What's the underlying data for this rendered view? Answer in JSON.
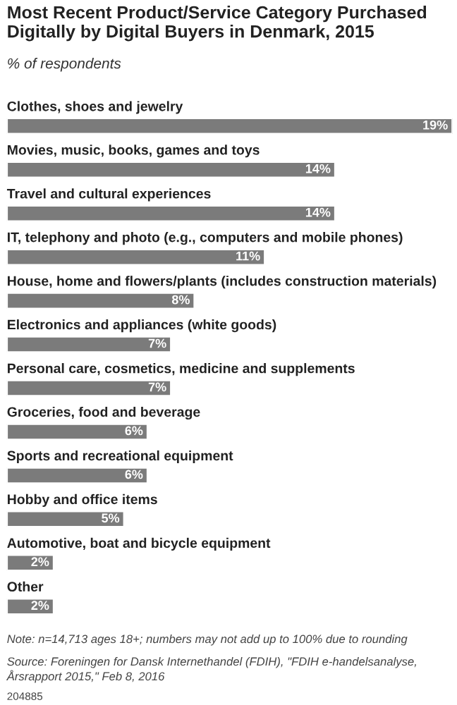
{
  "chart_data": {
    "type": "bar",
    "orientation": "horizontal",
    "title": "Most Recent Product/Service Category Purchased Digitally by Digital Buyers in Denmark, 2015",
    "subtitle": "% of respondents",
    "categories": [
      "Clothes, shoes and jewelry",
      "Movies, music, books, games and toys",
      "Travel and cultural experiences",
      "IT, telephony and photo (e.g., computers and mobile phones)",
      "House, home and flowers/plants (includes construction materials)",
      "Electronics and appliances (white goods)",
      "Personal care, cosmetics, medicine and supplements",
      "Groceries, food and beverage",
      "Sports and recreational equipment",
      "Hobby and office items",
      "Automotive, boat and bicycle equipment",
      "Other"
    ],
    "values": [
      19,
      14,
      14,
      11,
      8,
      7,
      7,
      6,
      6,
      5,
      2,
      2
    ],
    "value_labels": [
      "19%",
      "14%",
      "14%",
      "11%",
      "8%",
      "7%",
      "7%",
      "6%",
      "6%",
      "5%",
      "2%",
      "2%"
    ],
    "color": "#7b7b7b",
    "annotations": [
      "Note: n=14,713 ages 18+; numbers may not add up to 100% due to rounding",
      "Source: Foreningen for Dansk Internethandel (FDIH), \"FDIH e-handelsanalyse, Årsrapport 2015,\" Feb 8, 2016",
      "204885"
    ]
  }
}
